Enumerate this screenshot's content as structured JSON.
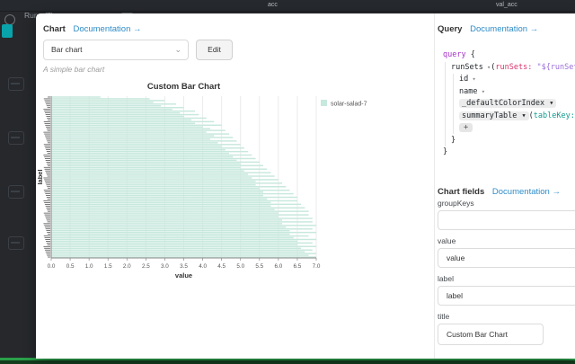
{
  "window": {
    "panel_titles": [
      "acc",
      "val_acc"
    ],
    "runs_label": "Runs (7)"
  },
  "chart_panel": {
    "heading": "Chart",
    "doc_link": "Documentation →",
    "type_selected": "Bar chart",
    "edit_label": "Edit",
    "subtitle": "A simple bar chart"
  },
  "query_panel": {
    "heading": "Query",
    "doc_link": "Documentation →",
    "code_lines": [
      {
        "indent": 0,
        "tokens": [
          {
            "t": "query",
            "c": "kw"
          },
          {
            "t": " {",
            "c": "plain"
          }
        ]
      },
      {
        "indent": 1,
        "tokens": [
          {
            "t": "runSets",
            "c": "field"
          },
          {
            "t": " ▾",
            "c": "caret"
          },
          {
            "t": "(",
            "c": "plain"
          },
          {
            "t": "runSets:",
            "c": "arg-pink"
          },
          {
            "t": " \"${runSets}\"",
            "c": "str"
          },
          {
            "t": " ▾",
            "c": "caret"
          }
        ]
      },
      {
        "indent": 2,
        "tokens": [
          {
            "t": "id",
            "c": "field"
          },
          {
            "t": " ▾",
            "c": "caret"
          }
        ]
      },
      {
        "indent": 2,
        "tokens": [
          {
            "t": "name",
            "c": "field"
          },
          {
            "t": " ▾",
            "c": "caret"
          }
        ]
      },
      {
        "indent": 2,
        "tokens": [
          {
            "t": "_defaultColorIndex ▾",
            "c": "pill"
          }
        ]
      },
      {
        "indent": 2,
        "tokens": [
          {
            "t": "summaryTable ▾",
            "c": "pill"
          },
          {
            "t": "(",
            "c": "plain"
          },
          {
            "t": "tableKey:",
            "c": "arg-teal"
          },
          {
            "t": " \"my_ba",
            "c": "str"
          }
        ]
      },
      {
        "indent": 2,
        "tokens": [
          {
            "t": "+",
            "c": "plus"
          }
        ]
      },
      {
        "indent": 1,
        "tokens": [
          {
            "t": "}",
            "c": "plain"
          }
        ]
      },
      {
        "indent": 0,
        "tokens": [
          {
            "t": "}",
            "c": "plain"
          }
        ]
      }
    ]
  },
  "fields_panel": {
    "heading": "Chart fields",
    "doc_link": "Documentation →",
    "fields": [
      {
        "label": "groupKeys",
        "value": "",
        "size": "wide"
      },
      {
        "label": "value",
        "value": "value",
        "size": "wide"
      },
      {
        "label": "label",
        "value": "label",
        "size": "wide"
      },
      {
        "label": "title",
        "value": "Custom Bar Chart",
        "size": "narrow"
      }
    ]
  },
  "chart_data": {
    "type": "bar",
    "orientation": "horizontal",
    "title": "Custom Bar Chart",
    "xlabel": "value",
    "ylabel": "label",
    "xlim": [
      0,
      7
    ],
    "xticks": [
      0,
      0.5,
      1,
      1.5,
      2,
      2.5,
      3,
      3.5,
      4,
      4.5,
      5,
      5.5,
      6,
      6.5,
      7
    ],
    "grid": true,
    "legend": [
      {
        "label": "solar-salad-7",
        "color": "#c7e8dd"
      }
    ],
    "ytick_labels_note": "≈92 dense run labels, illegible at this resolution",
    "values": [
      1.3,
      2.6,
      3.0,
      2.7,
      3.3,
      2.9,
      3.5,
      3.2,
      3.8,
      3.4,
      3.9,
      3.5,
      4.1,
      3.7,
      4.3,
      3.8,
      4.5,
      4.0,
      4.2,
      4.6,
      4.1,
      4.7,
      4.3,
      4.8,
      4.2,
      4.9,
      4.4,
      5.0,
      4.5,
      5.1,
      4.6,
      5.2,
      4.7,
      5.3,
      4.8,
      5.4,
      4.9,
      5.5,
      5.0,
      5.6,
      5.0,
      5.7,
      5.1,
      5.8,
      5.2,
      5.9,
      5.3,
      6.0,
      5.4,
      6.1,
      5.4,
      6.2,
      5.5,
      6.3,
      5.6,
      6.4,
      5.6,
      6.5,
      5.7,
      6.5,
      5.8,
      6.6,
      5.8,
      6.7,
      5.9,
      6.8,
      6.0,
      6.8,
      6.0,
      6.9,
      6.1,
      6.9,
      6.1,
      7.0,
      6.2,
      6.9,
      6.3,
      7.0,
      6.3,
      6.8,
      6.4,
      7.0,
      6.5,
      6.9,
      6.5,
      7.0,
      6.6,
      6.9,
      6.7,
      7.0,
      6.8,
      7.0
    ]
  },
  "colors": {
    "link": "#2e8cc7",
    "bar": "#c7e8dd",
    "axis": "#888888",
    "grid": "#ebebeb",
    "green_bar": "#2aa04a"
  }
}
